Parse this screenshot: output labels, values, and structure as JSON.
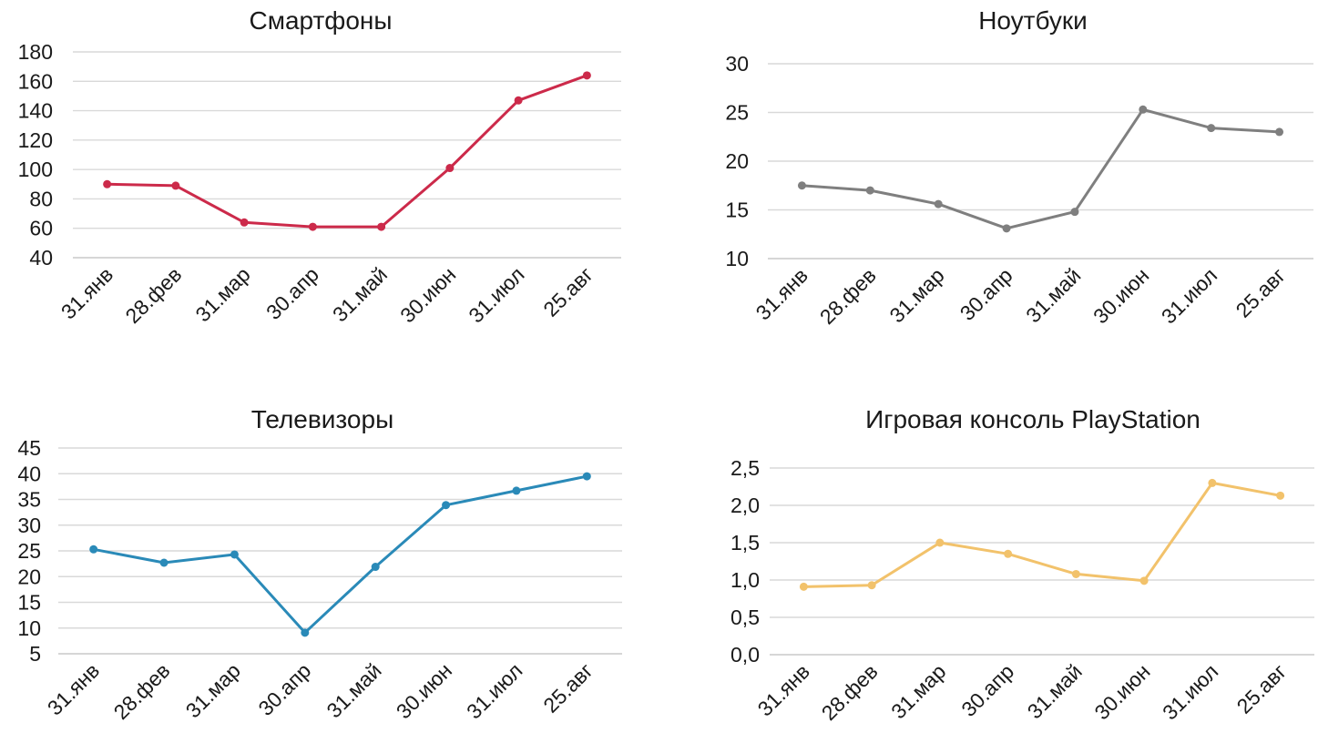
{
  "chart_data": [
    {
      "type": "line",
      "title": "Смартфоны",
      "categories": [
        "31.янв",
        "28.фев",
        "31.мар",
        "30.апр",
        "31.май",
        "30.июн",
        "31.июл",
        "25.авг"
      ],
      "values": [
        90,
        89,
        64,
        61,
        61,
        101,
        147,
        164
      ],
      "ylim": [
        40,
        180
      ],
      "yticks": [
        "40",
        "60",
        "80",
        "100",
        "120",
        "140",
        "160",
        "180"
      ],
      "color": "#cc2a4a",
      "xlabel": "",
      "ylabel": "",
      "grid": true
    },
    {
      "type": "line",
      "title": "Ноутбуки",
      "categories": [
        "31.янв",
        "28.фев",
        "31.мар",
        "30.апр",
        "31.май",
        "30.июн",
        "31.июл",
        "25.авг"
      ],
      "values": [
        17.5,
        17.0,
        15.6,
        13.1,
        14.8,
        25.3,
        23.4,
        23.0
      ],
      "ylim": [
        10,
        30
      ],
      "yticks": [
        "10",
        "15",
        "20",
        "25",
        "30"
      ],
      "color": "#7f7f7f",
      "xlabel": "",
      "ylabel": "",
      "grid": true
    },
    {
      "type": "line",
      "title": "Телевизоры",
      "categories": [
        "31.янв",
        "28.фев",
        "31.мар",
        "30.апр",
        "31.май",
        "30.июн",
        "31.июл",
        "25.авг"
      ],
      "values": [
        25.3,
        22.7,
        24.3,
        9.1,
        21.9,
        33.9,
        36.7,
        39.5
      ],
      "ylim": [
        5,
        45
      ],
      "yticks": [
        "5",
        "10",
        "15",
        "20",
        "25",
        "30",
        "35",
        "40",
        "45"
      ],
      "color": "#2a8ab8",
      "xlabel": "",
      "ylabel": "",
      "grid": true
    },
    {
      "type": "line",
      "title": "Игровая консоль PlayStation",
      "categories": [
        "31.янв",
        "28.фев",
        "31.мар",
        "30.апр",
        "31.май",
        "30.июн",
        "31.июл",
        "25.авг"
      ],
      "values": [
        0.91,
        0.93,
        1.5,
        1.35,
        1.08,
        0.99,
        2.3,
        2.13
      ],
      "ylim": [
        0,
        2.5
      ],
      "yticks": [
        "0,0",
        "0,5",
        "1,0",
        "1,5",
        "2,0",
        "2,5"
      ],
      "color": "#f2c26b",
      "xlabel": "",
      "ylabel": "",
      "grid": true
    }
  ]
}
